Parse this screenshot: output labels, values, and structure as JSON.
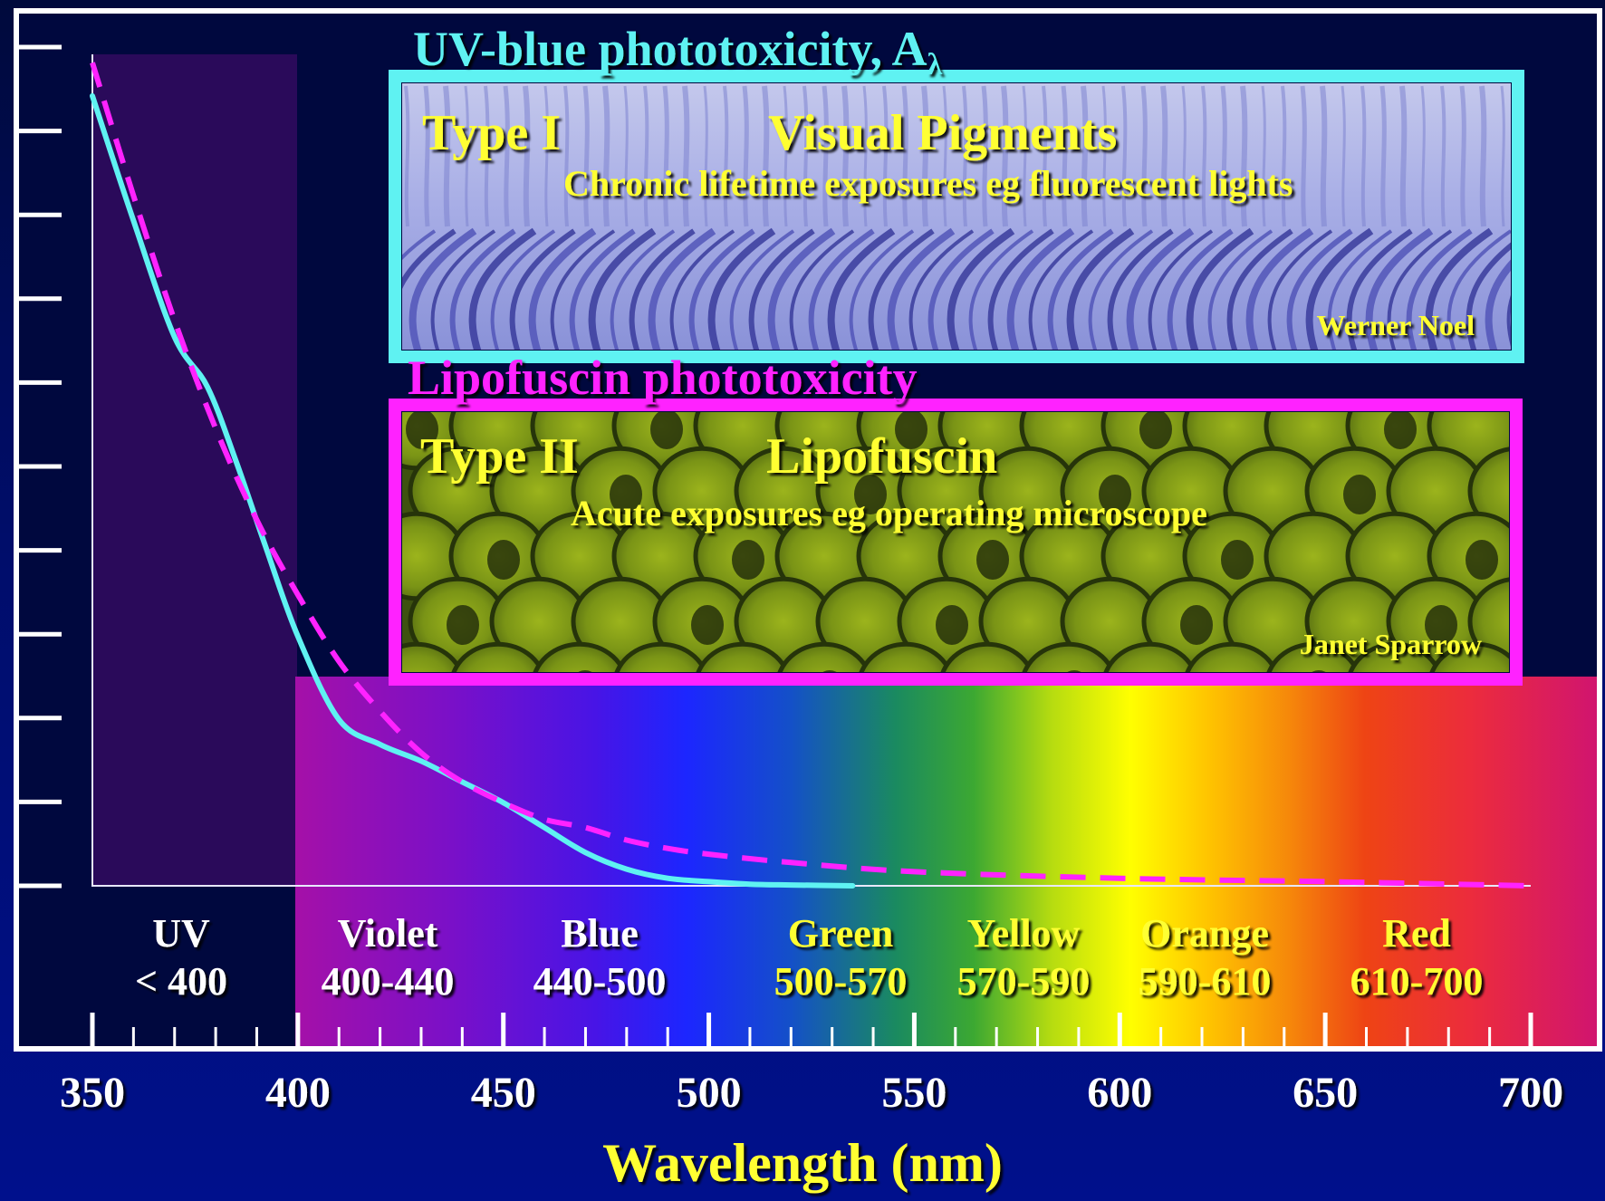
{
  "colors": {
    "uv_curve": "#5ff2f2",
    "lipofuscin_curve": "#ff22ff",
    "heading_uv": "#5ff2f2",
    "heading_lipofuscin": "#ff22ff",
    "panel_text": "#ffff33",
    "axis_title": "#ffff33",
    "band_light": "#ffffff",
    "band_warm": "#ffff33"
  },
  "chart_data": {
    "type": "line",
    "xlabel": "Wavelength (nm)",
    "ylabel": "",
    "xlim": [
      350,
      700
    ],
    "x_ticks": [
      350,
      400,
      450,
      500,
      550,
      600,
      650,
      700
    ],
    "y_tick_count": 11,
    "ylim": [
      0,
      1
    ],
    "grid": false,
    "series": [
      {
        "name": "UV-blue phototoxicity",
        "style": "solid",
        "color": "#5ff2f2",
        "x": [
          350,
          360,
          370,
          378,
          385,
          392,
          400,
          410,
          420,
          430,
          440,
          450,
          460,
          470,
          480,
          490,
          500,
          510,
          520,
          535
        ],
        "y": [
          0.95,
          0.8,
          0.66,
          0.6,
          0.51,
          0.41,
          0.3,
          0.2,
          0.17,
          0.15,
          0.125,
          0.1,
          0.07,
          0.04,
          0.02,
          0.009,
          0.005,
          0.002,
          0.001,
          0.0
        ]
      },
      {
        "name": "Lipofuscin phototoxicity",
        "style": "dashed",
        "color": "#ff22ff",
        "x": [
          350,
          360,
          370,
          380,
          390,
          400,
          410,
          420,
          430,
          440,
          450,
          460,
          470,
          480,
          490,
          500,
          520,
          550,
          600,
          650,
          700
        ],
        "y": [
          0.99,
          0.83,
          0.68,
          0.55,
          0.44,
          0.35,
          0.27,
          0.21,
          0.16,
          0.125,
          0.1,
          0.08,
          0.07,
          0.055,
          0.045,
          0.038,
          0.028,
          0.017,
          0.009,
          0.005,
          0.0
        ]
      }
    ],
    "bands": [
      {
        "name": "UV",
        "range": "< 400",
        "color": "#ffffff"
      },
      {
        "name": "Violet",
        "range": "400-440",
        "color": "#ffffff"
      },
      {
        "name": "Blue",
        "range": "440-500",
        "color": "#ffffff"
      },
      {
        "name": "Green",
        "range": "500-570",
        "color": "#ffff33"
      },
      {
        "name": "Yellow",
        "range": "570-590",
        "color": "#ffff33"
      },
      {
        "name": "Orange",
        "range": "590-610",
        "color": "#ffff33"
      },
      {
        "name": "Red",
        "range": "610-700",
        "color": "#ffff33"
      }
    ]
  },
  "panels": {
    "uv": {
      "heading": "UV-blue phototoxicity, A",
      "heading_sub": "λ",
      "type": "Type I",
      "target": "Visual Pigments",
      "exposure": "Chronic lifetime exposures eg fluorescent lights",
      "credit": "Werner Noel"
    },
    "lipofuscin": {
      "heading": "Lipofuscin phototoxicity",
      "type": "Type II",
      "target": "Lipofuscin",
      "exposure": "Acute exposures eg operating microscope",
      "credit": "Janet Sparrow"
    }
  }
}
